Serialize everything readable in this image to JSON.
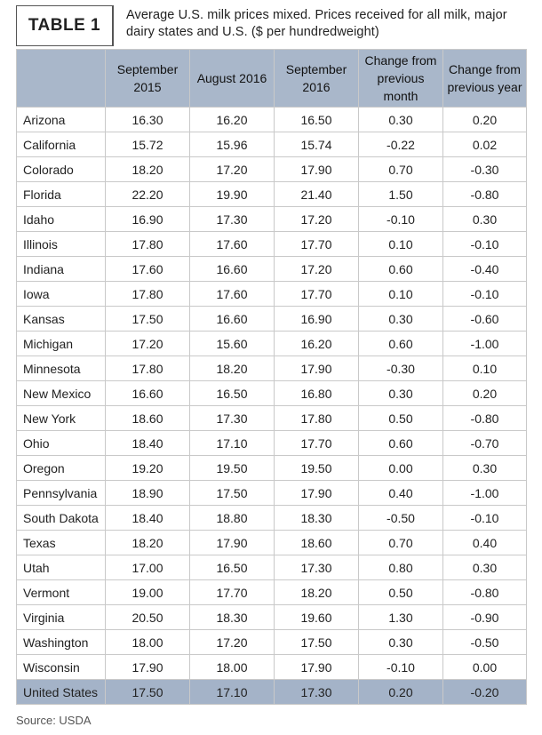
{
  "header": {
    "label": "TABLE 1",
    "title": "Average U.S. milk prices mixed. Prices received for all milk, major dairy states and U.S. ($ per hundredweight)"
  },
  "table": {
    "columns": [
      "September 2015",
      "August 2016",
      "September 2016",
      "Change from previous month",
      "Change from previous year"
    ],
    "rows": [
      [
        "Arizona",
        "16.30",
        "16.20",
        "16.50",
        "0.30",
        "0.20"
      ],
      [
        "California",
        "15.72",
        "15.96",
        "15.74",
        "-0.22",
        "0.02"
      ],
      [
        "Colorado",
        "18.20",
        "17.20",
        "17.90",
        "0.70",
        "-0.30"
      ],
      [
        "Florida",
        "22.20",
        "19.90",
        "21.40",
        "1.50",
        "-0.80"
      ],
      [
        "Idaho",
        "16.90",
        "17.30",
        "17.20",
        "-0.10",
        "0.30"
      ],
      [
        "Illinois",
        "17.80",
        "17.60",
        "17.70",
        "0.10",
        "-0.10"
      ],
      [
        "Indiana",
        "17.60",
        "16.60",
        "17.20",
        "0.60",
        "-0.40"
      ],
      [
        "Iowa",
        "17.80",
        "17.60",
        "17.70",
        "0.10",
        "-0.10"
      ],
      [
        "Kansas",
        "17.50",
        "16.60",
        "16.90",
        "0.30",
        "-0.60"
      ],
      [
        "Michigan",
        "17.20",
        "15.60",
        "16.20",
        "0.60",
        "-1.00"
      ],
      [
        "Minnesota",
        "17.80",
        "18.20",
        "17.90",
        "-0.30",
        "0.10"
      ],
      [
        "New Mexico",
        "16.60",
        "16.50",
        "16.80",
        "0.30",
        "0.20"
      ],
      [
        "New York",
        "18.60",
        "17.30",
        "17.80",
        "0.50",
        "-0.80"
      ],
      [
        "Ohio",
        "18.40",
        "17.10",
        "17.70",
        "0.60",
        "-0.70"
      ],
      [
        "Oregon",
        "19.20",
        "19.50",
        "19.50",
        "0.00",
        "0.30"
      ],
      [
        "Pennsylvania",
        "18.90",
        "17.50",
        "17.90",
        "0.40",
        "-1.00"
      ],
      [
        "South Dakota",
        "18.40",
        "18.80",
        "18.30",
        "-0.50",
        "-0.10"
      ],
      [
        "Texas",
        "18.20",
        "17.90",
        "18.60",
        "0.70",
        "0.40"
      ],
      [
        "Utah",
        "17.00",
        "16.50",
        "17.30",
        "0.80",
        "0.30"
      ],
      [
        "Vermont",
        "19.00",
        "17.70",
        "18.20",
        "0.50",
        "-0.80"
      ],
      [
        "Virginia",
        "20.50",
        "18.30",
        "19.60",
        "1.30",
        "-0.90"
      ],
      [
        "Washington",
        "18.00",
        "17.20",
        "17.50",
        "0.30",
        "-0.50"
      ],
      [
        "Wisconsin",
        "17.90",
        "18.00",
        "17.90",
        "-0.10",
        "0.00"
      ]
    ],
    "total": [
      "United States",
      "17.50",
      "17.10",
      "17.30",
      "0.20",
      "-0.20"
    ]
  },
  "source": "Source: USDA"
}
